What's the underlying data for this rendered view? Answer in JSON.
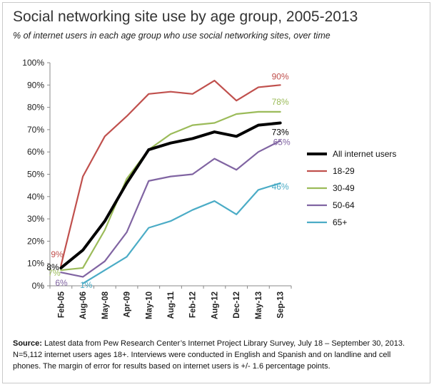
{
  "header": {
    "title": "Social networking site use by age group, 2005-2013",
    "subtitle": "% of internet users in each age group who use social networking sites, over time"
  },
  "chart_data": {
    "type": "line",
    "categories": [
      "Feb-05",
      "Aug-06",
      "May-08",
      "Apr-09",
      "May-10",
      "Aug-11",
      "Feb-12",
      "Aug-12",
      "Dec-12",
      "May-13",
      "Sep-13"
    ],
    "y_ticks": [
      "0%",
      "10%",
      "20%",
      "30%",
      "40%",
      "50%",
      "60%",
      "70%",
      "80%",
      "90%",
      "100%"
    ],
    "ylim": [
      0,
      100
    ],
    "grid": false,
    "legend_position": "right",
    "series": [
      {
        "name": "18-29",
        "color": "#c0504d",
        "values": [
          9,
          49,
          67,
          76,
          86,
          87,
          86,
          92,
          83,
          89,
          90
        ],
        "start_label": "9%",
        "end_label": "90%"
      },
      {
        "name": "30-49",
        "color": "#9bbb59",
        "values": [
          7,
          8,
          25,
          48,
          61,
          68,
          72,
          73,
          77,
          78,
          78
        ],
        "start_label": "7%",
        "end_label": "78%"
      },
      {
        "name": "50-64",
        "color": "#8064a2",
        "values": [
          6,
          4,
          11,
          24,
          47,
          49,
          50,
          57,
          52,
          60,
          65
        ],
        "start_label": "6%",
        "end_label": "65%"
      },
      {
        "name": "65+",
        "color": "#4bacc6",
        "values": [
          null,
          1,
          7,
          13,
          26,
          29,
          34,
          38,
          32,
          43,
          46
        ],
        "start_label": "1%",
        "end_label": "46%"
      },
      {
        "name": "All internet users",
        "color": "#000000",
        "values": [
          8,
          16,
          29,
          46,
          61,
          64,
          66,
          69,
          67,
          72,
          73
        ],
        "start_label": "8%",
        "end_label": "73%"
      }
    ],
    "legend_order": [
      "All internet users",
      "18-29",
      "30-49",
      "50-64",
      "65+"
    ]
  },
  "footer": {
    "source_label": "Source:",
    "source_text": " Latest data from Pew Research Center’s Internet Project Library Survey, July 18 – September 30, 2013. N=5,112 internet users ages 18+. Interviews were conducted in English and Spanish and on landline and cell phones.  The margin of error for results based on internet users is +/- 1.6 percentage points."
  }
}
